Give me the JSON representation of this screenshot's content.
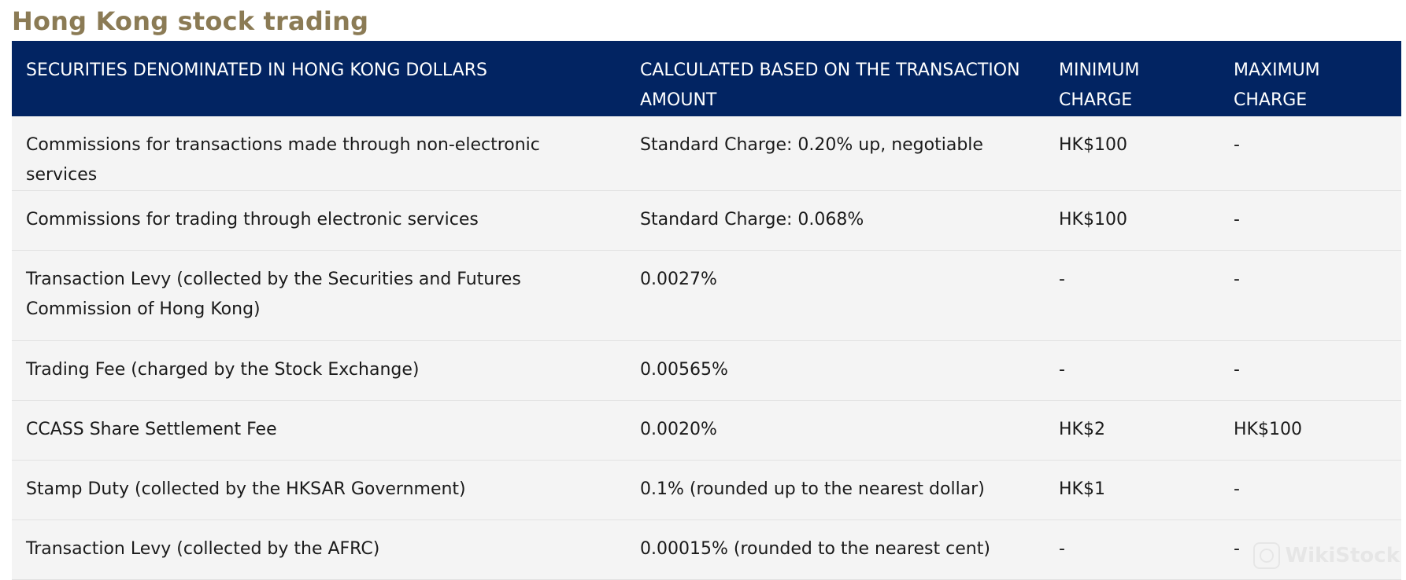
{
  "title": "Hong Kong stock trading",
  "table": {
    "headers": [
      "SECURITIES DENOMINATED IN HONG KONG DOLLARS",
      "CALCULATED BASED ON THE TRANSACTION AMOUNT",
      "MINIMUM CHARGE",
      "MAXIMUM CHARGE"
    ],
    "rows": [
      [
        "Commissions for transactions made through non-electronic services",
        "Standard Charge: 0.20% up, negotiable",
        "HK$100",
        "-"
      ],
      [
        "Commissions for trading through electronic services",
        "Standard Charge: 0.068%",
        "HK$100",
        "-"
      ],
      [
        "Transaction Levy (collected by the Securities and Futures Commission of Hong Kong)",
        "0.0027%",
        "-",
        "-"
      ],
      [
        "Trading Fee (charged by the Stock Exchange)",
        "0.00565%",
        "-",
        "-"
      ],
      [
        "CCASS Share Settlement Fee",
        "0.0020%",
        "HK$2",
        "HK$100"
      ],
      [
        "Stamp Duty (collected by the HKSAR Government)",
        "0.1% (rounded up to the nearest dollar)",
        "HK$1",
        "-"
      ],
      [
        "Transaction Levy (collected by the AFRC)",
        "0.00015% (rounded to the nearest cent)",
        "-",
        "-"
      ]
    ]
  },
  "watermark": {
    "text": "WikiStock",
    "icon": "wikistock-logo-icon"
  },
  "colors": {
    "title": "#8b7b55",
    "header_bg": "#022462",
    "header_text": "#ffffff",
    "row_bg": "#f4f4f4"
  }
}
